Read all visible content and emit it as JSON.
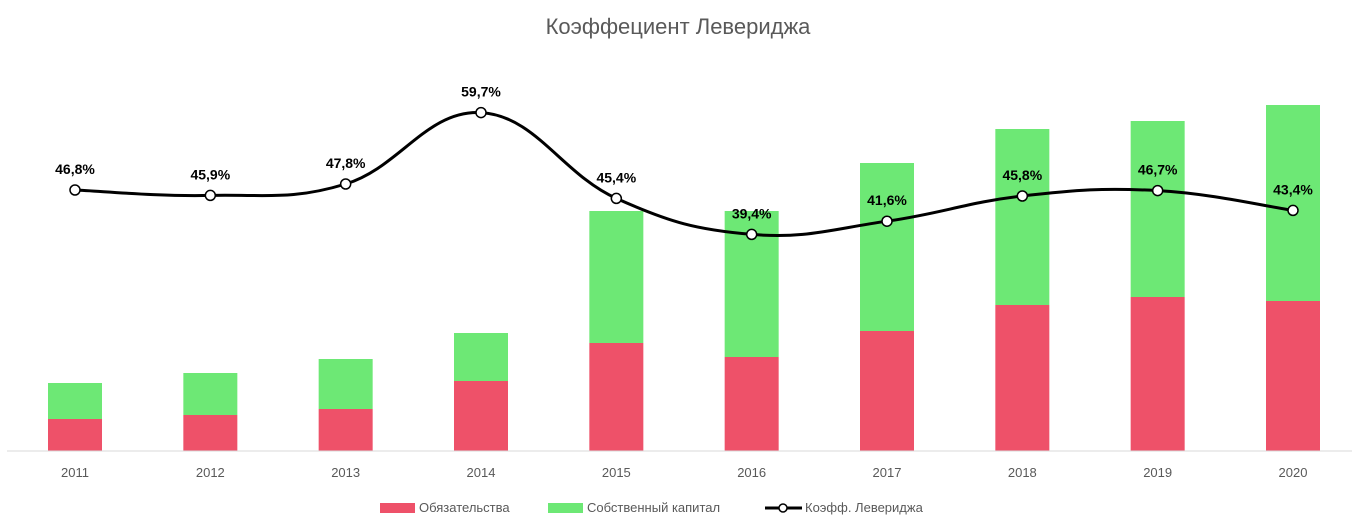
{
  "chart_data": {
    "type": "bar",
    "title": "Коэффециент Левериджа",
    "categories": [
      "2011",
      "2012",
      "2013",
      "2014",
      "2015",
      "2016",
      "2017",
      "2018",
      "2019",
      "2020"
    ],
    "series": [
      {
        "name": "Обязательства",
        "kind": "stacked-bar",
        "color": "#EE5169",
        "values": [
          32,
          36,
          42,
          70,
          108,
          94,
          120,
          146,
          154,
          150
        ]
      },
      {
        "name": "Собственный капитал",
        "kind": "stacked-bar",
        "color": "#6DE875",
        "values": [
          36,
          42,
          50,
          48,
          132,
          146,
          168,
          176,
          176,
          196
        ]
      },
      {
        "name": "Коэфф. Левериджа",
        "kind": "line",
        "color": "#000000",
        "values": [
          46.8,
          45.9,
          47.8,
          59.7,
          45.4,
          39.4,
          41.6,
          45.8,
          46.7,
          43.4
        ],
        "labels": [
          "46,8%",
          "45,9%",
          "47,8%",
          "59,7%",
          "45,4%",
          "39,4%",
          "41,6%",
          "45,8%",
          "46,7%",
          "43,4%"
        ]
      }
    ],
    "legend_position": "bottom",
    "grid": false
  }
}
